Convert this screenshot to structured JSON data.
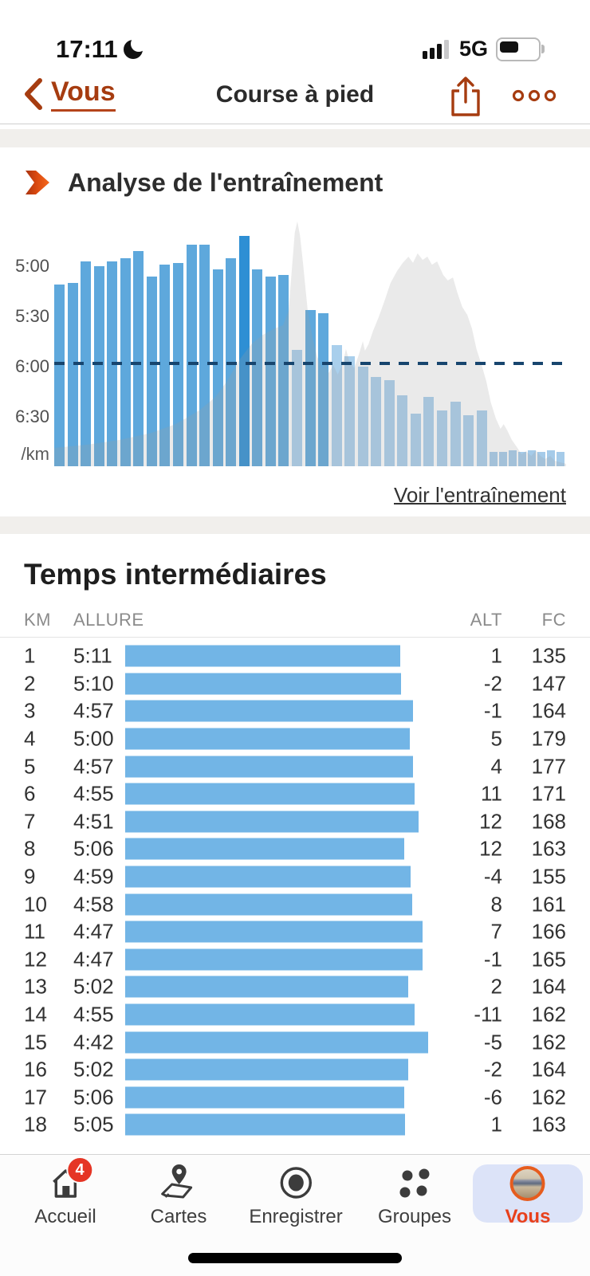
{
  "status_bar": {
    "time": "17:11",
    "focus_moon_icon": true,
    "network": "5G",
    "signal_bars_filled": 3,
    "signal_bars_total": 4,
    "battery_level": 0.55
  },
  "nav_bar": {
    "back_label": "Vous",
    "title": "Course à pied"
  },
  "analysis": {
    "title": "Analyse de l'entraînement",
    "link_label": "Voir l'entraînement"
  },
  "chart_data": {
    "type": "bar",
    "title": "Analyse de l'entraînement",
    "ylabel": "/km",
    "y_ticks": [
      "5:00",
      "5:30",
      "6:00",
      "6:30"
    ],
    "y_axis_note": "pace per km, inverted axis — taller bar = faster pace",
    "average_pace_dashed_line": "5:57",
    "bars": [
      {
        "pace": "5:11",
        "style": "solid"
      },
      {
        "pace": "5:10",
        "style": "solid"
      },
      {
        "pace": "4:57",
        "style": "solid"
      },
      {
        "pace": "5:00",
        "style": "solid"
      },
      {
        "pace": "4:57",
        "style": "solid"
      },
      {
        "pace": "4:55",
        "style": "solid"
      },
      {
        "pace": "4:51",
        "style": "solid"
      },
      {
        "pace": "5:06",
        "style": "solid"
      },
      {
        "pace": "4:59",
        "style": "solid"
      },
      {
        "pace": "4:58",
        "style": "solid"
      },
      {
        "pace": "4:47",
        "style": "solid"
      },
      {
        "pace": "4:47",
        "style": "solid"
      },
      {
        "pace": "5:02",
        "style": "solid"
      },
      {
        "pace": "4:55",
        "style": "solid"
      },
      {
        "pace": "4:42",
        "style": "highlight"
      },
      {
        "pace": "5:02",
        "style": "solid"
      },
      {
        "pace": "5:06",
        "style": "solid"
      },
      {
        "pace": "5:05",
        "style": "solid"
      },
      {
        "pace": "5:50",
        "style": "light"
      },
      {
        "pace": "5:26",
        "style": "solid"
      },
      {
        "pace": "5:28",
        "style": "solid"
      },
      {
        "pace": "5:47",
        "style": "light"
      },
      {
        "pace": "5:54",
        "style": "light"
      },
      {
        "pace": "6:00",
        "style": "light"
      },
      {
        "pace": "6:06",
        "style": "light"
      },
      {
        "pace": "6:08",
        "style": "light"
      },
      {
        "pace": "6:17",
        "style": "light"
      },
      {
        "pace": "6:28",
        "style": "light"
      },
      {
        "pace": "6:18",
        "style": "light"
      },
      {
        "pace": "6:26",
        "style": "light"
      },
      {
        "pace": "6:21",
        "style": "light"
      },
      {
        "pace": "6:29",
        "style": "light"
      },
      {
        "pace": "6:26",
        "style": "light"
      },
      {
        "pace": "6:51",
        "style": "faint"
      },
      {
        "pace": "6:51",
        "style": "faint"
      },
      {
        "pace": "6:50",
        "style": "faint"
      },
      {
        "pace": "6:51",
        "style": "faint"
      },
      {
        "pace": "6:50",
        "style": "faint"
      },
      {
        "pace": "6:51",
        "style": "faint"
      },
      {
        "pace": "6:50",
        "style": "faint"
      },
      {
        "pace": "6:51",
        "style": "faint"
      }
    ],
    "background_elevation_profile": [
      [
        0,
        0.073
      ],
      [
        0.065,
        0.086
      ],
      [
        0.128,
        0.105
      ],
      [
        0.19,
        0.133
      ],
      [
        0.237,
        0.168
      ],
      [
        0.283,
        0.222
      ],
      [
        0.315,
        0.276
      ],
      [
        0.338,
        0.34
      ],
      [
        0.361,
        0.422
      ],
      [
        0.385,
        0.486
      ],
      [
        0.408,
        0.524
      ],
      [
        0.431,
        0.549
      ],
      [
        0.447,
        0.562
      ],
      [
        0.458,
        0.619
      ],
      [
        0.464,
        0.778
      ],
      [
        0.47,
        0.93
      ],
      [
        0.475,
        0.975
      ],
      [
        0.48,
        0.921
      ],
      [
        0.486,
        0.81
      ],
      [
        0.495,
        0.625
      ],
      [
        0.505,
        0.508
      ],
      [
        0.514,
        0.435
      ],
      [
        0.523,
        0.39
      ],
      [
        0.53,
        0.422
      ],
      [
        0.536,
        0.371
      ],
      [
        0.545,
        0.403
      ],
      [
        0.554,
        0.365
      ],
      [
        0.564,
        0.413
      ],
      [
        0.57,
        0.467
      ],
      [
        0.576,
        0.422
      ],
      [
        0.586,
        0.39
      ],
      [
        0.595,
        0.444
      ],
      [
        0.603,
        0.498
      ],
      [
        0.607,
        0.46
      ],
      [
        0.614,
        0.486
      ],
      [
        0.623,
        0.54
      ],
      [
        0.634,
        0.594
      ],
      [
        0.645,
        0.657
      ],
      [
        0.657,
        0.73
      ],
      [
        0.67,
        0.778
      ],
      [
        0.681,
        0.81
      ],
      [
        0.692,
        0.835
      ],
      [
        0.701,
        0.81
      ],
      [
        0.71,
        0.848
      ],
      [
        0.72,
        0.822
      ],
      [
        0.729,
        0.835
      ],
      [
        0.738,
        0.803
      ],
      [
        0.748,
        0.816
      ],
      [
        0.76,
        0.762
      ],
      [
        0.769,
        0.74
      ],
      [
        0.779,
        0.752
      ],
      [
        0.788,
        0.689
      ],
      [
        0.797,
        0.635
      ],
      [
        0.807,
        0.603
      ],
      [
        0.816,
        0.549
      ],
      [
        0.825,
        0.467
      ],
      [
        0.835,
        0.403
      ],
      [
        0.844,
        0.34
      ],
      [
        0.853,
        0.254
      ],
      [
        0.863,
        0.19
      ],
      [
        0.872,
        0.149
      ],
      [
        0.878,
        0.168
      ],
      [
        0.885,
        0.143
      ],
      [
        0.894,
        0.105
      ],
      [
        0.903,
        0.079
      ],
      [
        0.913,
        0.048
      ],
      [
        0.922,
        0.06
      ],
      [
        0.932,
        0.041
      ],
      [
        0.941,
        0.063
      ],
      [
        0.95,
        0.041
      ],
      [
        0.959,
        0.029
      ],
      [
        0.969,
        0.041
      ],
      [
        0.978,
        0.022
      ],
      [
        0.988,
        0.016
      ],
      [
        1,
        0.01
      ]
    ],
    "bar_colors": {
      "solid": "#5ea8dc",
      "highlight": "#2e8fd4",
      "light": "#a9cfec",
      "faint": "#a5cbe9"
    },
    "dashed_line_color": "#17456e",
    "elevation_color": "#e9e9e9"
  },
  "splits": {
    "title": "Temps intermédiaires",
    "columns": [
      "KM",
      "ALLURE",
      "ALT",
      "FC"
    ],
    "bar_color": "#72b5e6",
    "rows": [
      {
        "km": "1",
        "pace": "5:11",
        "alt": "1",
        "fc": "135"
      },
      {
        "km": "2",
        "pace": "5:10",
        "alt": "-2",
        "fc": "147"
      },
      {
        "km": "3",
        "pace": "4:57",
        "alt": "-1",
        "fc": "164"
      },
      {
        "km": "4",
        "pace": "5:00",
        "alt": "5",
        "fc": "179"
      },
      {
        "km": "5",
        "pace": "4:57",
        "alt": "4",
        "fc": "177"
      },
      {
        "km": "6",
        "pace": "4:55",
        "alt": "11",
        "fc": "171"
      },
      {
        "km": "7",
        "pace": "4:51",
        "alt": "12",
        "fc": "168"
      },
      {
        "km": "8",
        "pace": "5:06",
        "alt": "12",
        "fc": "163"
      },
      {
        "km": "9",
        "pace": "4:59",
        "alt": "-4",
        "fc": "155"
      },
      {
        "km": "10",
        "pace": "4:58",
        "alt": "8",
        "fc": "161"
      },
      {
        "km": "11",
        "pace": "4:47",
        "alt": "7",
        "fc": "166"
      },
      {
        "km": "12",
        "pace": "4:47",
        "alt": "-1",
        "fc": "165"
      },
      {
        "km": "13",
        "pace": "5:02",
        "alt": "2",
        "fc": "164"
      },
      {
        "km": "14",
        "pace": "4:55",
        "alt": "-11",
        "fc": "162"
      },
      {
        "km": "15",
        "pace": "4:42",
        "alt": "-5",
        "fc": "162"
      },
      {
        "km": "16",
        "pace": "5:02",
        "alt": "-2",
        "fc": "164"
      },
      {
        "km": "17",
        "pace": "5:06",
        "alt": "-6",
        "fc": "162"
      },
      {
        "km": "18",
        "pace": "5:05",
        "alt": "1",
        "fc": "163"
      }
    ]
  },
  "tab_bar": {
    "items": [
      {
        "label": "Accueil",
        "badge": "4"
      },
      {
        "label": "Cartes"
      },
      {
        "label": "Enregistrer"
      },
      {
        "label": "Groupes"
      },
      {
        "label": "Vous",
        "active": true
      }
    ]
  },
  "colors": {
    "accent_rust": "#a63c10",
    "active_tab_orange": "#e8401c",
    "badge_red": "#e53525",
    "vous_pill_bg": "#dce3f8",
    "section_band_gray": "#f1efec"
  }
}
